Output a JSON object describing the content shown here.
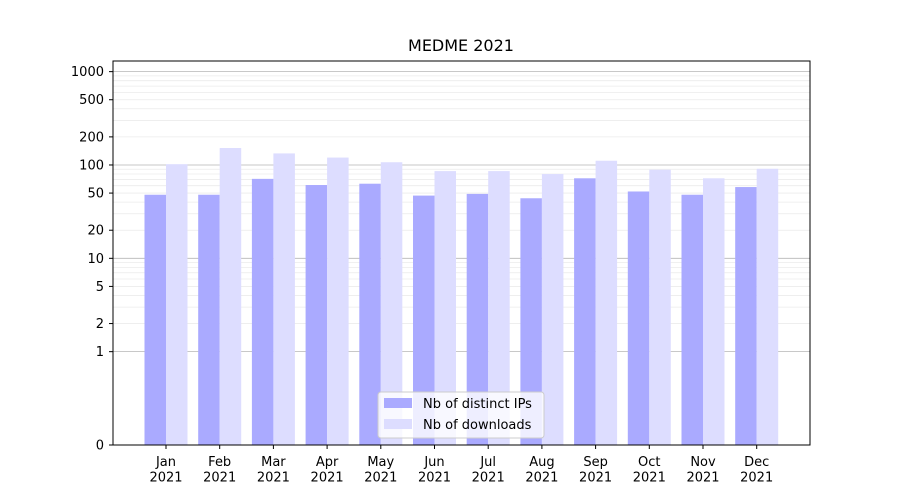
{
  "chart_data": {
    "type": "bar",
    "title": "MEDME 2021",
    "xlabel": "",
    "ylabel": "",
    "yscale": "symlog",
    "ylim": [
      0,
      1300
    ],
    "yticks": [
      0,
      1,
      2,
      5,
      10,
      20,
      50,
      100,
      200,
      500,
      1000
    ],
    "grid": true,
    "legend_position": "bottom-center",
    "categories": [
      "Jan\n2021",
      "Feb\n2021",
      "Mar\n2021",
      "Apr\n2021",
      "May\n2021",
      "Jun\n2021",
      "Jul\n2021",
      "Aug\n2021",
      "Sep\n2021",
      "Oct\n2021",
      "Nov\n2021",
      "Dec\n2021"
    ],
    "series": [
      {
        "name": "Nb of distinct IPs",
        "color": "#aaaaff",
        "values": [
          48,
          48,
          71,
          61,
          63,
          47,
          49,
          44,
          72,
          52,
          48,
          58
        ]
      },
      {
        "name": "Nb of downloads",
        "color": "#ddddff",
        "values": [
          102,
          152,
          133,
          120,
          107,
          86,
          86,
          80,
          111,
          89,
          72,
          91
        ]
      }
    ]
  }
}
